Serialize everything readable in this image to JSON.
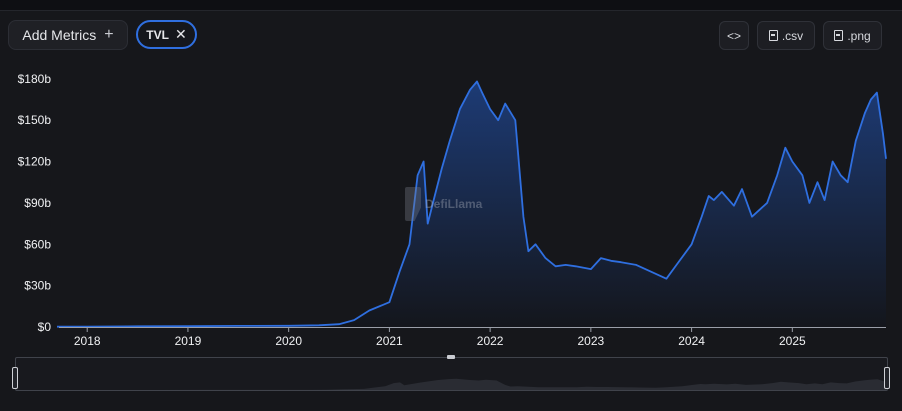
{
  "toolbar": {
    "add_metrics_label": "Add Metrics",
    "add_icon": "plus-icon",
    "metric_chip_label": "TVL",
    "remove_icon": "close-icon",
    "embed_icon": "code-icon",
    "csv_label": ".csv",
    "png_label": ".png",
    "file_icon": "file-icon"
  },
  "watermark": {
    "text": "DefiLlama"
  },
  "colors": {
    "line": "#2f6fe0",
    "area_top": "#1d3b75",
    "area_bottom": "#14161c",
    "axis_text": "#f0f1f3"
  },
  "chart_data": {
    "type": "area",
    "title": "",
    "xlabel": "",
    "ylabel": "",
    "series": [
      {
        "name": "TVL",
        "x": [
          2017.7,
          2018.0,
          2018.5,
          2019.0,
          2019.5,
          2020.0,
          2020.3,
          2020.5,
          2020.65,
          2020.8,
          2021.0,
          2021.1,
          2021.2,
          2021.28,
          2021.34,
          2021.38,
          2021.45,
          2021.52,
          2021.6,
          2021.7,
          2021.8,
          2021.87,
          2021.92,
          2022.0,
          2022.08,
          2022.15,
          2022.25,
          2022.33,
          2022.38,
          2022.45,
          2022.55,
          2022.65,
          2022.75,
          2022.85,
          2023.0,
          2023.1,
          2023.2,
          2023.3,
          2023.45,
          2023.6,
          2023.75,
          2023.85,
          2024.0,
          2024.1,
          2024.17,
          2024.22,
          2024.3,
          2024.42,
          2024.5,
          2024.6,
          2024.75,
          2024.85,
          2024.93,
          2025.0,
          2025.1,
          2025.17,
          2025.25,
          2025.32,
          2025.4,
          2025.48,
          2025.55,
          2025.63,
          2025.72,
          2025.78,
          2025.84,
          2025.9,
          2025.93
        ],
        "values": [
          0.2,
          0.3,
          0.5,
          0.6,
          0.8,
          0.9,
          1.2,
          2,
          5,
          12,
          18,
          40,
          60,
          110,
          120,
          75,
          95,
          115,
          135,
          158,
          172,
          178,
          170,
          158,
          150,
          162,
          150,
          80,
          55,
          60,
          50,
          44,
          45,
          44,
          42,
          50,
          48,
          47,
          45,
          40,
          35,
          45,
          60,
          80,
          95,
          92,
          98,
          88,
          100,
          80,
          90,
          110,
          130,
          120,
          110,
          90,
          105,
          92,
          120,
          110,
          105,
          135,
          155,
          165,
          170,
          140,
          122
        ]
      }
    ],
    "ylim": [
      0,
      190
    ],
    "y_ticks": [
      0,
      30,
      60,
      90,
      120,
      150,
      180
    ],
    "y_tick_labels": [
      "$0",
      "$30b",
      "$60b",
      "$90b",
      "$120b",
      "$150b",
      "$180b"
    ],
    "x_range": [
      2017.72,
      2025.93
    ],
    "x_ticks": [
      2018,
      2019,
      2020,
      2021,
      2022,
      2023,
      2024,
      2025
    ],
    "x_tick_labels": [
      "2018",
      "2019",
      "2020",
      "2021",
      "2022",
      "2023",
      "2024",
      "2025"
    ],
    "grid": false,
    "legend": "none"
  }
}
